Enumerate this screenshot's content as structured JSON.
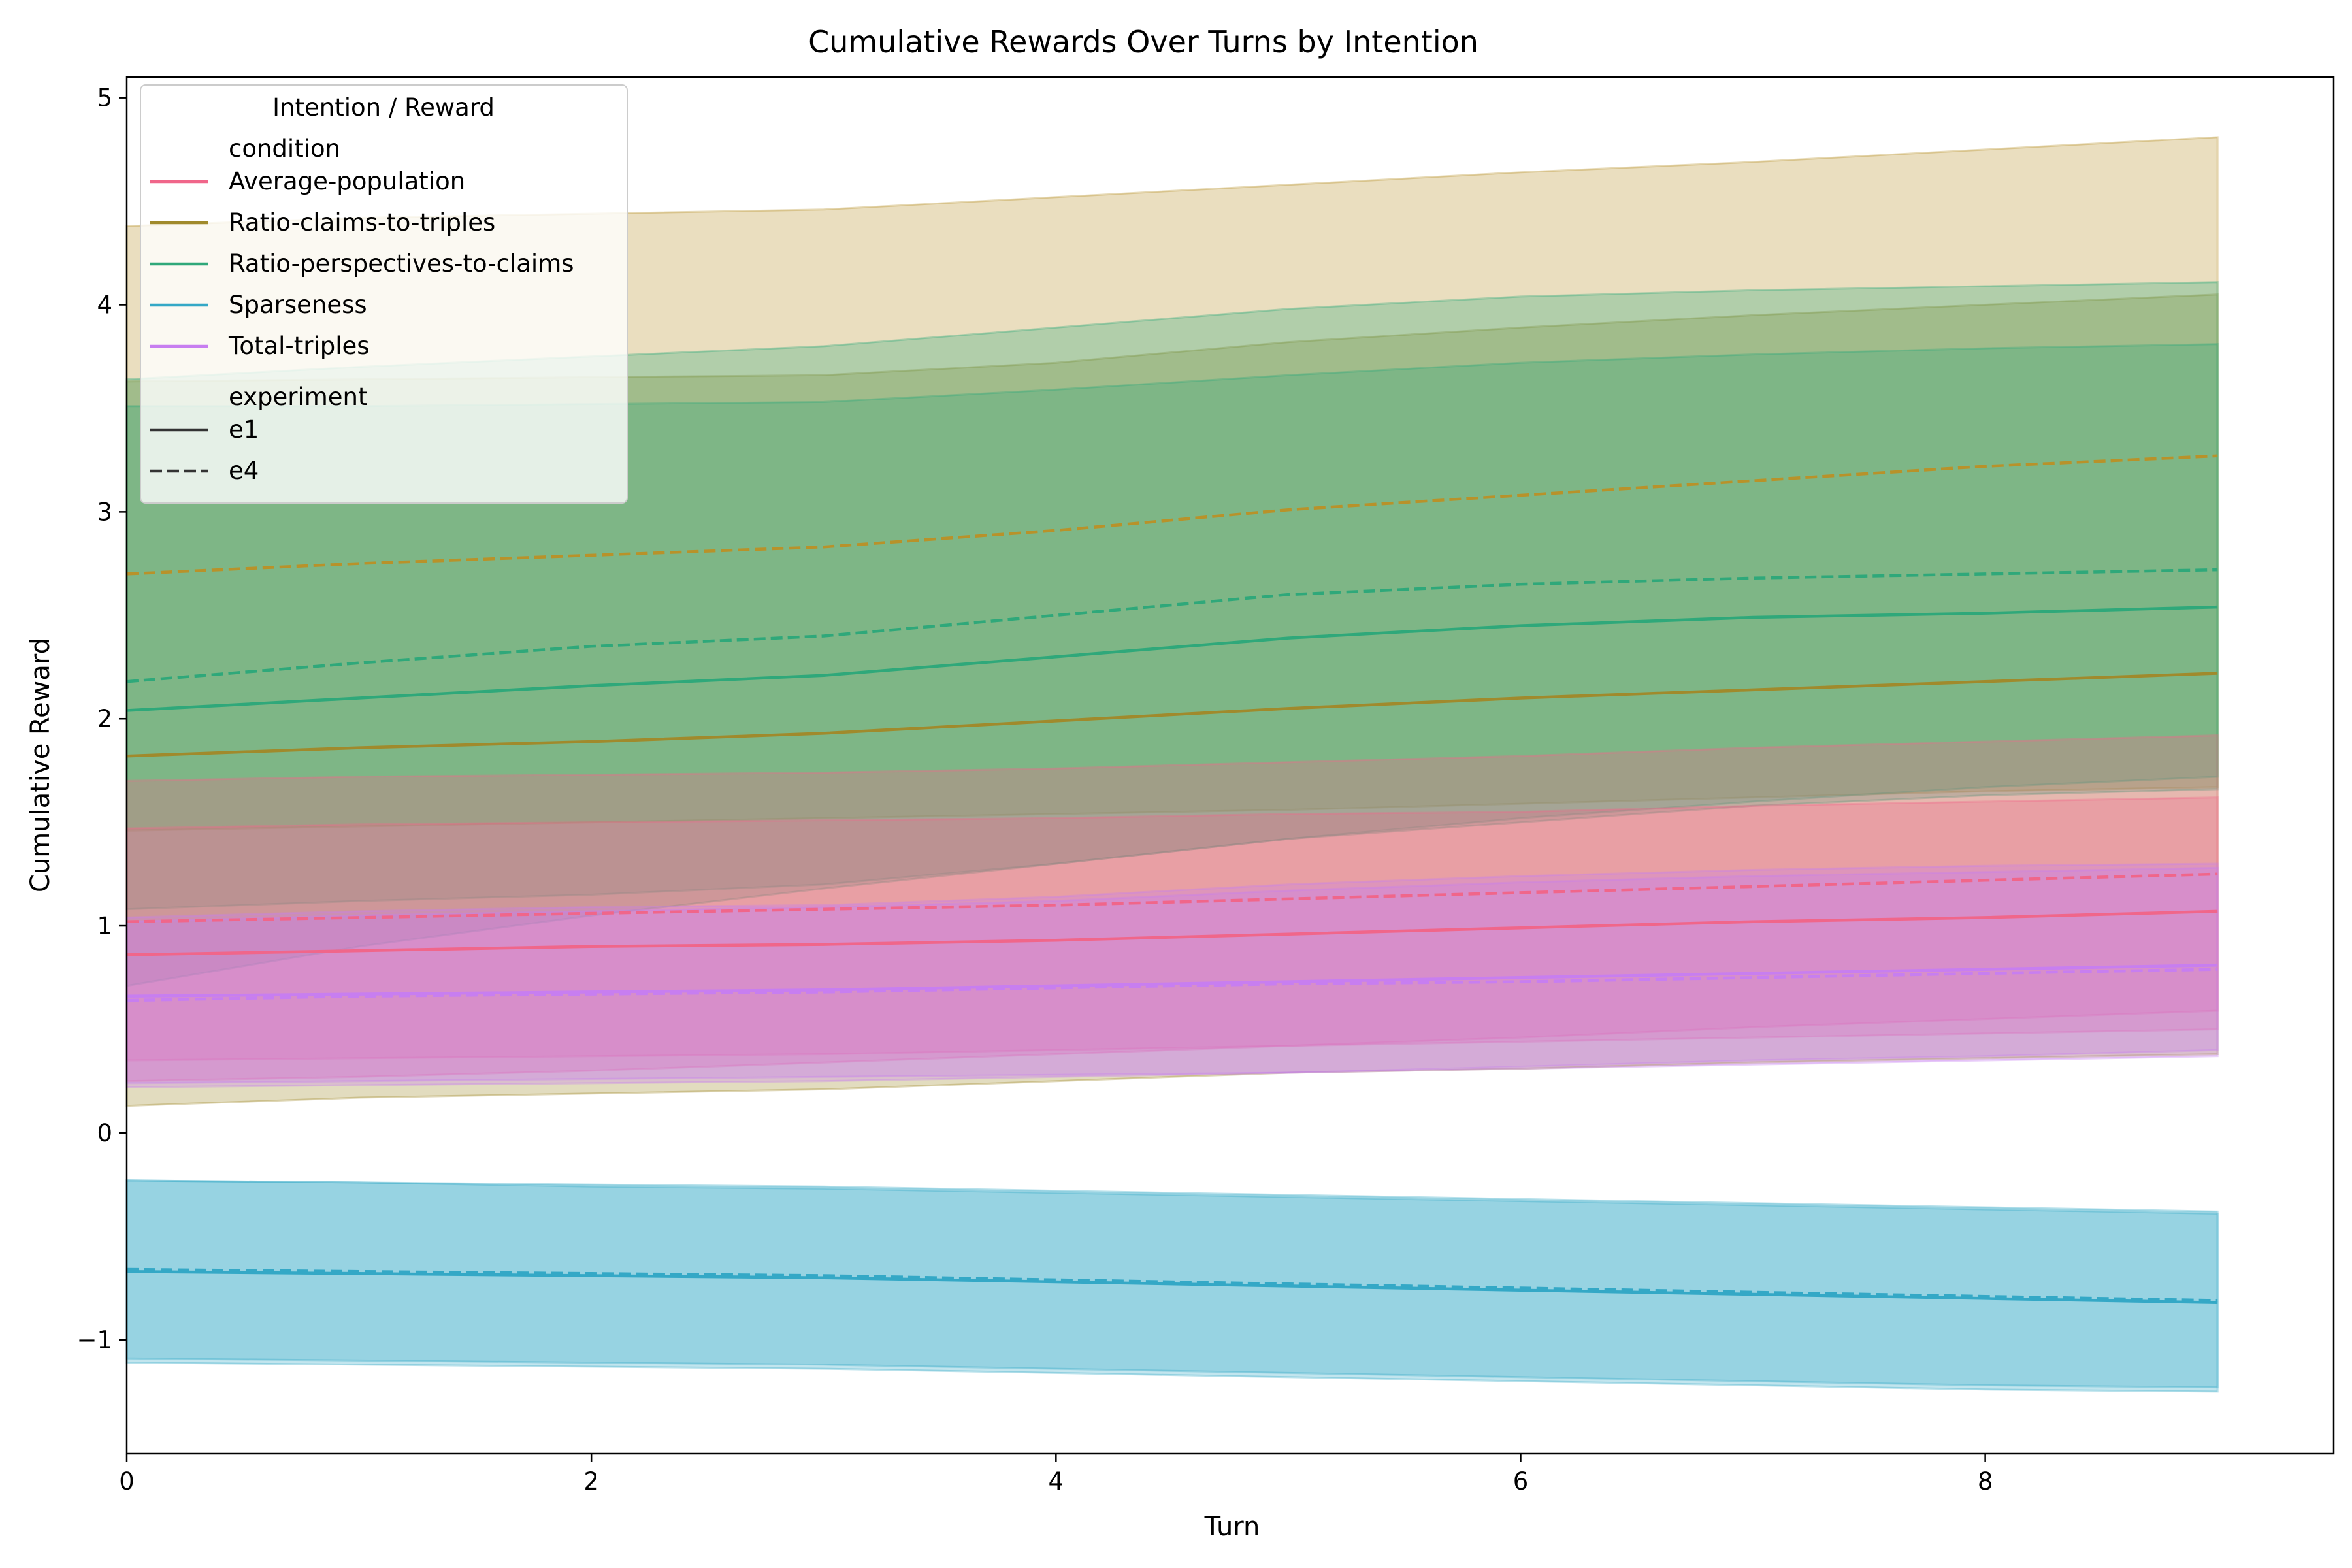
{
  "chart_data": {
    "type": "line",
    "title": "Cumulative Rewards Over Turns by Intention",
    "xlabel": "Turn",
    "ylabel": "Cumulative Reward",
    "xlim": [
      0,
      9.5
    ],
    "ylim": [
      -1.55,
      5.1
    ],
    "x_ticks": [
      0,
      2,
      4,
      6,
      8
    ],
    "x_tick_labels": [
      "0",
      "2",
      "4",
      "6",
      "8"
    ],
    "y_ticks": [
      -1,
      0,
      1,
      2,
      3,
      4,
      5
    ],
    "y_tick_labels": [
      "−1",
      "0",
      "1",
      "2",
      "3",
      "4",
      "5"
    ],
    "grid": false,
    "legend": {
      "title": "Intention / Reward",
      "placement": "top-left",
      "hue_header": "condition",
      "style_header": "experiment"
    },
    "x": [
      0,
      1,
      2,
      3,
      4,
      5,
      6,
      7,
      8,
      9
    ],
    "experiments": [
      {
        "name": "e1",
        "dash": "solid"
      },
      {
        "name": "e4",
        "dash": "dashed"
      }
    ],
    "series": [
      {
        "name": "Ratio-claims-to-triples",
        "experiment": "e4",
        "color": "#b8922a",
        "values": [
          2.7,
          2.75,
          2.79,
          2.83,
          2.91,
          3.01,
          3.08,
          3.15,
          3.22,
          3.27
        ],
        "lower": [
          1.46,
          1.48,
          1.5,
          1.52,
          1.54,
          1.56,
          1.59,
          1.62,
          1.65,
          1.67
        ],
        "upper": [
          4.38,
          4.42,
          4.44,
          4.46,
          4.52,
          4.58,
          4.64,
          4.69,
          4.75,
          4.81
        ]
      },
      {
        "name": "Ratio-claims-to-triples",
        "experiment": "e1",
        "color": "#a08a2c",
        "values": [
          1.82,
          1.86,
          1.89,
          1.93,
          1.99,
          2.05,
          2.1,
          2.14,
          2.18,
          2.22
        ],
        "lower": [
          0.13,
          0.17,
          0.19,
          0.21,
          0.25,
          0.29,
          0.31,
          0.34,
          0.36,
          0.38
        ],
        "upper": [
          3.63,
          3.64,
          3.65,
          3.66,
          3.72,
          3.82,
          3.89,
          3.95,
          4.0,
          4.05
        ]
      },
      {
        "name": "Ratio-perspectives-to-claims",
        "experiment": "e4",
        "color": "#2fa87a",
        "values": [
          2.18,
          2.27,
          2.35,
          2.4,
          2.5,
          2.6,
          2.65,
          2.68,
          2.7,
          2.72
        ],
        "lower": [
          0.71,
          0.9,
          1.05,
          1.18,
          1.3,
          1.42,
          1.52,
          1.6,
          1.67,
          1.72
        ],
        "upper": [
          3.64,
          3.7,
          3.75,
          3.8,
          3.89,
          3.98,
          4.04,
          4.07,
          4.09,
          4.11
        ]
      },
      {
        "name": "Ratio-perspectives-to-claims",
        "experiment": "e1",
        "color": "#2fa87a",
        "values": [
          2.04,
          2.1,
          2.16,
          2.21,
          2.3,
          2.39,
          2.45,
          2.49,
          2.51,
          2.54
        ],
        "lower": [
          1.08,
          1.12,
          1.15,
          1.2,
          1.3,
          1.42,
          1.5,
          1.58,
          1.63,
          1.66
        ],
        "upper": [
          3.51,
          3.51,
          3.52,
          3.53,
          3.59,
          3.66,
          3.72,
          3.76,
          3.79,
          3.81
        ]
      },
      {
        "name": "Average-population",
        "experiment": "e4",
        "color": "#f0668a",
        "values": [
          1.02,
          1.04,
          1.06,
          1.08,
          1.1,
          1.13,
          1.16,
          1.19,
          1.22,
          1.25
        ],
        "lower": [
          0.25,
          0.27,
          0.3,
          0.34,
          0.38,
          0.42,
          0.46,
          0.51,
          0.55,
          0.59
        ],
        "upper": [
          1.7,
          1.72,
          1.73,
          1.74,
          1.76,
          1.79,
          1.82,
          1.86,
          1.89,
          1.92
        ]
      },
      {
        "name": "Average-population",
        "experiment": "e1",
        "color": "#f0668a",
        "values": [
          0.86,
          0.88,
          0.9,
          0.91,
          0.93,
          0.96,
          0.99,
          1.02,
          1.04,
          1.07
        ],
        "lower": [
          0.35,
          0.36,
          0.37,
          0.38,
          0.4,
          0.42,
          0.44,
          0.46,
          0.48,
          0.5
        ],
        "upper": [
          1.47,
          1.49,
          1.5,
          1.51,
          1.52,
          1.54,
          1.55,
          1.58,
          1.6,
          1.62
        ]
      },
      {
        "name": "Total-triples",
        "experiment": "e1",
        "color": "#c77ef0",
        "values": [
          0.66,
          0.67,
          0.68,
          0.69,
          0.71,
          0.73,
          0.75,
          0.77,
          0.79,
          0.81
        ],
        "lower": [
          0.24,
          0.25,
          0.26,
          0.27,
          0.28,
          0.29,
          0.32,
          0.35,
          0.37,
          0.4
        ],
        "upper": [
          1.04,
          1.07,
          1.09,
          1.1,
          1.14,
          1.2,
          1.24,
          1.27,
          1.29,
          1.3
        ]
      },
      {
        "name": "Total-triples",
        "experiment": "e4",
        "color": "#c77ef0",
        "values": [
          0.64,
          0.66,
          0.67,
          0.68,
          0.7,
          0.72,
          0.73,
          0.75,
          0.77,
          0.79
        ],
        "lower": [
          0.22,
          0.23,
          0.24,
          0.25,
          0.27,
          0.29,
          0.31,
          0.33,
          0.35,
          0.37
        ],
        "upper": [
          1.02,
          1.05,
          1.07,
          1.09,
          1.12,
          1.17,
          1.21,
          1.24,
          1.26,
          1.28
        ]
      },
      {
        "name": "Sparseness",
        "experiment": "e4",
        "color": "#34a8c6",
        "values": [
          -0.66,
          -0.67,
          -0.68,
          -0.69,
          -0.71,
          -0.73,
          -0.75,
          -0.77,
          -0.79,
          -0.81
        ],
        "lower": [
          -1.09,
          -1.1,
          -1.11,
          -1.12,
          -1.14,
          -1.16,
          -1.18,
          -1.2,
          -1.22,
          -1.23
        ],
        "upper": [
          -0.23,
          -0.24,
          -0.25,
          -0.26,
          -0.28,
          -0.3,
          -0.32,
          -0.34,
          -0.36,
          -0.38
        ]
      },
      {
        "name": "Sparseness",
        "experiment": "e1",
        "color": "#34a8c6",
        "values": [
          -0.67,
          -0.68,
          -0.69,
          -0.7,
          -0.72,
          -0.74,
          -0.76,
          -0.78,
          -0.8,
          -0.82
        ],
        "lower": [
          -1.11,
          -1.12,
          -1.13,
          -1.14,
          -1.16,
          -1.18,
          -1.2,
          -1.22,
          -1.24,
          -1.25
        ],
        "upper": [
          -0.23,
          -0.24,
          -0.26,
          -0.27,
          -0.29,
          -0.31,
          -0.33,
          -0.35,
          -0.37,
          -0.39
        ]
      }
    ],
    "legend_entries": [
      {
        "label": "Average-population",
        "color": "#f0668a",
        "dash": "solid"
      },
      {
        "label": "Ratio-claims-to-triples",
        "color": "#a08a2c",
        "dash": "solid"
      },
      {
        "label": "Ratio-perspectives-to-claims",
        "color": "#2fa87a",
        "dash": "solid"
      },
      {
        "label": "Sparseness",
        "color": "#34a8c6",
        "dash": "solid"
      },
      {
        "label": "Total-triples",
        "color": "#c77ef0",
        "dash": "solid"
      },
      {
        "label": "e1",
        "color": "#333333",
        "dash": "solid"
      },
      {
        "label": "e4",
        "color": "#333333",
        "dash": "dashed"
      }
    ]
  }
}
